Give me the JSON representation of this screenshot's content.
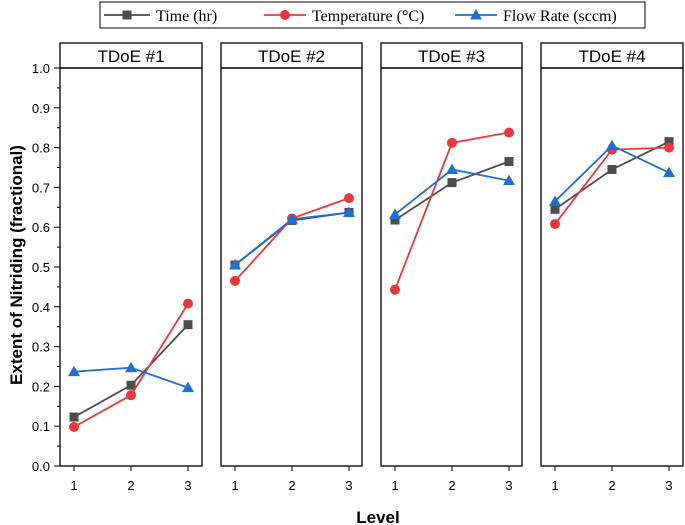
{
  "chart_data": {
    "type": "line",
    "ylabel": "Extent of Nitriding (fractional)",
    "xlabel": "Level",
    "ylim": [
      0,
      1.0
    ],
    "yticks": [
      "0.0",
      "0.1",
      "0.2",
      "0.3",
      "0.4",
      "0.5",
      "0.6",
      "0.7",
      "0.8",
      "0.9",
      "1.0"
    ],
    "categories": [
      "1",
      "2",
      "3"
    ],
    "legend_position": "top-center",
    "series_meta": [
      {
        "name": "Time (hr)",
        "color": "#4d4d4d",
        "marker": "square"
      },
      {
        "name": "Temperature (°C)",
        "color": "#e8383d",
        "marker": "circle"
      },
      {
        "name": "Flow Rate (sccm)",
        "color": "#1f6fd1",
        "marker": "triangle"
      }
    ],
    "panels": [
      {
        "title": "TDoE #1",
        "series": [
          {
            "name": "Time (hr)",
            "values": [
              0.123,
              0.203,
              0.355
            ]
          },
          {
            "name": "Temperature (°C)",
            "values": [
              0.098,
              0.178,
              0.408
            ]
          },
          {
            "name": "Flow Rate (sccm)",
            "values": [
              0.237,
              0.247,
              0.197
            ]
          }
        ]
      },
      {
        "title": "TDoE #2",
        "series": [
          {
            "name": "Time (hr)",
            "values": [
              0.505,
              0.617,
              0.637
            ]
          },
          {
            "name": "Temperature (°C)",
            "values": [
              0.465,
              0.622,
              0.673
            ]
          },
          {
            "name": "Flow Rate (sccm)",
            "values": [
              0.505,
              0.62,
              0.637
            ]
          }
        ]
      },
      {
        "title": "TDoE #3",
        "series": [
          {
            "name": "Time (hr)",
            "values": [
              0.618,
              0.712,
              0.765
            ]
          },
          {
            "name": "Temperature (°C)",
            "values": [
              0.443,
              0.812,
              0.838
            ]
          },
          {
            "name": "Flow Rate (sccm)",
            "values": [
              0.632,
              0.745,
              0.717
            ]
          }
        ]
      },
      {
        "title": "TDoE #4",
        "series": [
          {
            "name": "Time (hr)",
            "values": [
              0.645,
              0.745,
              0.815
            ]
          },
          {
            "name": "Temperature (°C)",
            "values": [
              0.608,
              0.795,
              0.8
            ]
          },
          {
            "name": "Flow Rate (sccm)",
            "values": [
              0.665,
              0.805,
              0.737
            ]
          }
        ]
      }
    ]
  }
}
